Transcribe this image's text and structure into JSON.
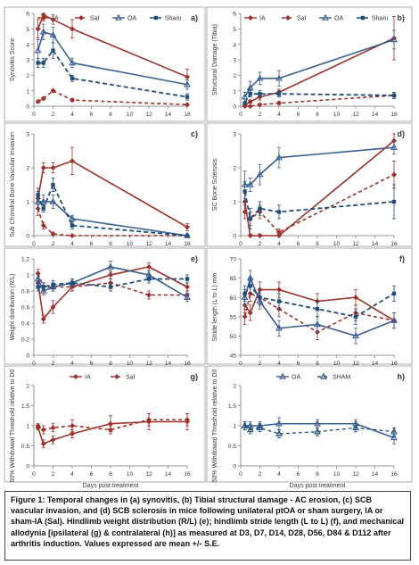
{
  "caption": "Figure 1: Temporal changes in (a) synovitis, (b) Tibial structural damage - AC erosion, (c) SCB vascular invasion, and (d) SCB sclerosis in mice following unilateral ptOA or sham surgery, IA or sham-IA (Sal). Hindlimb weight distribution (R/L) (e); hindlimb stride length (L to L) (f), and mechanical allodynia [ipsilateral (g) & contralateral (h)] as measured at D3, D7, D14, D28, D56, D84 & D112 after arthritis induction. Values expressed are mean +/- S.E.",
  "colors": {
    "IA": "#a0302a",
    "Sal": "#a0302a",
    "OA": "#3a5f92",
    "Sham": "#1f4e79"
  },
  "chart_data": [
    {
      "panel_label": "a)",
      "type": "line",
      "ylabel": "Synovitis Score",
      "xlabel": "",
      "xlim": [
        0,
        16
      ],
      "ylim": [
        0,
        6
      ],
      "xticks": [
        0,
        2,
        4,
        6,
        8,
        10,
        12,
        14,
        16
      ],
      "yticks": [
        0,
        1,
        2,
        3,
        4,
        5,
        6
      ],
      "legend": [
        "IA",
        "Sal",
        "OA",
        "Sham"
      ],
      "legend_position": "top",
      "series": [
        {
          "name": "IA",
          "x": [
            0.43,
            1,
            2,
            4,
            16
          ],
          "y": [
            5.0,
            5.9,
            5.6,
            5.0,
            1.9
          ],
          "err": [
            0.6,
            0.4,
            0.3,
            0.6,
            0.5
          ]
        },
        {
          "name": "Sal",
          "x": [
            0.43,
            1,
            2,
            4,
            16
          ],
          "y": [
            0.3,
            0.5,
            1.0,
            0.4,
            0.1
          ],
          "err": [
            0.1,
            0.1,
            0.1,
            0.1,
            0.05
          ]
        },
        {
          "name": "OA",
          "x": [
            0.43,
            1,
            2,
            4,
            16
          ],
          "y": [
            3.6,
            4.8,
            4.6,
            2.8,
            1.4
          ],
          "err": [
            0.7,
            0.5,
            0.5,
            0.3,
            0.3
          ]
        },
        {
          "name": "Sham",
          "x": [
            0.43,
            1,
            2,
            4,
            16
          ],
          "y": [
            2.8,
            2.8,
            3.6,
            1.8,
            0.6
          ],
          "err": [
            0.3,
            0.3,
            0.5,
            0.2,
            0.2
          ]
        }
      ]
    },
    {
      "panel_label": "b)",
      "type": "line",
      "ylabel": "Structural Damage (Tibia)",
      "xlabel": "",
      "xlim": [
        0,
        16
      ],
      "ylim": [
        0,
        6
      ],
      "xticks": [
        0,
        2,
        4,
        6,
        8,
        10,
        12,
        14,
        16
      ],
      "yticks": [
        0,
        1,
        2,
        3,
        4,
        5,
        6
      ],
      "legend": [
        "IA",
        "Sal",
        "OA",
        "Sham"
      ],
      "legend_position": "top",
      "series": [
        {
          "name": "IA",
          "x": [
            0.43,
            1,
            2,
            4,
            16
          ],
          "y": [
            0.05,
            0.3,
            0.6,
            0.9,
            4.4
          ],
          "err": [
            0.05,
            0.1,
            0.2,
            0.2,
            1.4
          ]
        },
        {
          "name": "Sal",
          "x": [
            0.43,
            1,
            2,
            4,
            16
          ],
          "y": [
            0.0,
            0.0,
            0.1,
            0.2,
            0.7
          ],
          "err": [
            0.02,
            0.02,
            0.05,
            0.1,
            0.2
          ]
        },
        {
          "name": "OA",
          "x": [
            0.43,
            1,
            2,
            4,
            16
          ],
          "y": [
            0.6,
            1.2,
            1.8,
            1.8,
            4.3
          ],
          "err": [
            0.3,
            0.4,
            0.4,
            0.5,
            0.6
          ]
        },
        {
          "name": "Sham",
          "x": [
            0.43,
            1,
            2,
            4,
            16
          ],
          "y": [
            0.2,
            0.8,
            0.8,
            0.8,
            0.7
          ],
          "err": [
            0.1,
            0.2,
            0.2,
            0.2,
            0.2
          ]
        }
      ]
    },
    {
      "panel_label": "c)",
      "type": "line",
      "ylabel": "Sub Chondral Bone Vascular Invasion",
      "xlabel": "",
      "xlim": [
        0,
        16
      ],
      "ylim": [
        0,
        3
      ],
      "xticks": [
        0,
        2,
        4,
        6,
        8,
        10,
        12,
        14,
        16
      ],
      "yticks": [
        0,
        1,
        2,
        3
      ],
      "series": [
        {
          "name": "IA",
          "x": [
            0.43,
            1,
            2,
            4,
            16
          ],
          "y": [
            1.1,
            2.0,
            2.0,
            2.2,
            0.25
          ],
          "err": [
            0.2,
            0.15,
            0.15,
            0.4,
            0.1
          ]
        },
        {
          "name": "Sal",
          "x": [
            0.43,
            1,
            2,
            4,
            16
          ],
          "y": [
            0.8,
            0.3,
            0.05,
            0.0,
            0.0
          ],
          "err": [
            0.2,
            0.1,
            0.05,
            0.02,
            0.02
          ]
        },
        {
          "name": "OA",
          "x": [
            0.43,
            1,
            2,
            4,
            16
          ],
          "y": [
            1.0,
            1.0,
            1.0,
            0.5,
            0.0
          ],
          "err": [
            0.2,
            0.2,
            0.2,
            0.1,
            0.02
          ]
        },
        {
          "name": "Sham",
          "x": [
            0.43,
            1,
            2,
            4,
            16
          ],
          "y": [
            1.2,
            0.8,
            1.5,
            0.3,
            0.0
          ],
          "err": [
            0.2,
            0.1,
            0.2,
            0.1,
            0.02
          ]
        }
      ]
    },
    {
      "panel_label": "d)",
      "type": "line",
      "ylabel": "SC Bone Sclerosis",
      "xlabel": "",
      "xlim": [
        0,
        16
      ],
      "ylim": [
        0,
        3
      ],
      "xticks": [
        0,
        2,
        4,
        6,
        8,
        10,
        12,
        14,
        16
      ],
      "yticks": [
        0,
        1,
        2,
        3
      ],
      "series": [
        {
          "name": "IA",
          "x": [
            0.43,
            1,
            2,
            4,
            16
          ],
          "y": [
            1.0,
            0.0,
            0.0,
            0.0,
            2.8
          ],
          "err": [
            0.3,
            0.05,
            0.05,
            0.05,
            0.2
          ]
        },
        {
          "name": "Sal",
          "x": [
            0.43,
            1,
            2,
            4,
            16
          ],
          "y": [
            0.7,
            0.5,
            0.7,
            0.1,
            1.8
          ],
          "err": [
            0.2,
            0.2,
            0.2,
            0.1,
            0.4
          ]
        },
        {
          "name": "OA",
          "x": [
            0.43,
            1,
            2,
            4,
            16
          ],
          "y": [
            1.5,
            1.5,
            1.8,
            2.3,
            2.6
          ],
          "err": [
            0.4,
            0.2,
            0.3,
            0.3,
            0.2
          ]
        },
        {
          "name": "Sham",
          "x": [
            0.43,
            1,
            2,
            4,
            16
          ],
          "y": [
            1.3,
            0.5,
            0.8,
            0.7,
            1.0
          ],
          "err": [
            0.3,
            0.3,
            0.2,
            0.2,
            0.5
          ]
        }
      ]
    },
    {
      "panel_label": "e)",
      "type": "line",
      "ylabel": "Weight distribution (R/L)",
      "xlabel": "",
      "xlim": [
        0,
        16
      ],
      "ylim": [
        0,
        1.2
      ],
      "xticks": [
        0,
        2,
        4,
        6,
        8,
        10,
        12,
        14,
        16
      ],
      "yticks": [
        0,
        0.2,
        0.4,
        0.6,
        0.8,
        1,
        1.2
      ],
      "series": [
        {
          "name": "IA",
          "x": [
            0.43,
            1,
            2,
            4,
            8,
            12,
            16
          ],
          "y": [
            0.9,
            0.45,
            0.6,
            0.85,
            1.0,
            1.1,
            0.85
          ],
          "err": [
            0.05,
            0.05,
            0.08,
            0.05,
            0.05,
            0.05,
            0.05
          ]
        },
        {
          "name": "Sal",
          "x": [
            0.43,
            1,
            2,
            4,
            8,
            12,
            16
          ],
          "y": [
            1.02,
            0.85,
            0.85,
            0.85,
            0.9,
            0.75,
            0.75
          ],
          "err": [
            0.05,
            0.05,
            0.05,
            0.05,
            0.05,
            0.05,
            0.05
          ]
        },
        {
          "name": "OA",
          "x": [
            0.43,
            1,
            2,
            4,
            8,
            12,
            16
          ],
          "y": [
            0.95,
            0.8,
            0.85,
            0.9,
            1.1,
            1.0,
            0.72
          ],
          "err": [
            0.05,
            0.05,
            0.05,
            0.05,
            0.07,
            0.05,
            0.05
          ]
        },
        {
          "name": "Sham",
          "x": [
            0.43,
            1,
            2,
            4,
            8,
            12,
            16
          ],
          "y": [
            0.85,
            0.85,
            0.88,
            0.9,
            0.85,
            0.95,
            0.95
          ],
          "err": [
            0.05,
            0.05,
            0.05,
            0.05,
            0.05,
            0.05,
            0.05
          ]
        }
      ]
    },
    {
      "panel_label": "f)",
      "type": "line",
      "ylabel": "Stride length (L to L) mm",
      "xlabel": "",
      "xlim": [
        0,
        16
      ],
      "ylim": [
        45,
        70
      ],
      "xticks": [
        0,
        2,
        4,
        6,
        8,
        10,
        12,
        14,
        16
      ],
      "yticks": [
        45,
        50,
        55,
        60,
        65,
        70
      ],
      "series": [
        {
          "name": "IA",
          "x": [
            0.43,
            1,
            2,
            4,
            8,
            12,
            16
          ],
          "y": [
            58,
            56,
            62,
            62,
            59,
            60,
            54
          ],
          "err": [
            2,
            2,
            2,
            2,
            2,
            2,
            2
          ]
        },
        {
          "name": "Sal",
          "x": [
            0.43,
            1,
            2,
            4,
            8,
            12,
            16
          ],
          "y": [
            55,
            61,
            60,
            57,
            51,
            56,
            54
          ],
          "err": [
            2,
            2,
            2,
            2,
            2,
            2,
            2
          ]
        },
        {
          "name": "OA",
          "x": [
            0.43,
            1,
            2,
            4,
            8,
            12,
            16
          ],
          "y": [
            60,
            65,
            59,
            52,
            53,
            50,
            54
          ],
          "err": [
            2,
            2,
            2,
            2,
            2,
            2,
            2
          ]
        },
        {
          "name": "Sham",
          "x": [
            0.43,
            1,
            2,
            4,
            8,
            12,
            16
          ],
          "y": [
            61,
            63,
            60,
            59,
            57,
            55,
            61
          ],
          "err": [
            2,
            2,
            2,
            2,
            2,
            2,
            2
          ]
        }
      ]
    },
    {
      "panel_label": "g)",
      "type": "line",
      "ylabel": "50% Withdrawal Threshold relative to D0",
      "xlabel": "Days post treatment",
      "xlim": [
        0,
        16
      ],
      "ylim": [
        0,
        2
      ],
      "xticks": [
        0,
        2,
        4,
        6,
        8,
        10,
        12,
        14,
        16
      ],
      "yticks": [
        0,
        0.5,
        1,
        1.5,
        2
      ],
      "legend": [
        "IA",
        "Sal"
      ],
      "legend_position": "top",
      "series": [
        {
          "name": "IA",
          "x": [
            0.43,
            1,
            2,
            4,
            8,
            12,
            16
          ],
          "y": [
            0.95,
            0.55,
            0.65,
            0.8,
            1.05,
            1.1,
            1.1
          ],
          "err": [
            0.05,
            0.1,
            0.1,
            0.1,
            0.2,
            0.2,
            0.2
          ]
        },
        {
          "name": "Sal",
          "x": [
            0.43,
            1,
            2,
            4,
            8,
            12,
            16
          ],
          "y": [
            1.0,
            0.9,
            0.95,
            1.0,
            0.9,
            1.15,
            1.15
          ],
          "err": [
            0.05,
            0.1,
            0.1,
            0.15,
            0.1,
            0.15,
            0.15
          ]
        }
      ]
    },
    {
      "panel_label": "h)",
      "type": "line",
      "ylabel": "50% Withdrawal Threshold relative to D0",
      "xlabel": "Days post treatment",
      "xlim": [
        0,
        16
      ],
      "ylim": [
        0,
        2
      ],
      "xticks": [
        0,
        2,
        4,
        6,
        8,
        10,
        12,
        14,
        16
      ],
      "yticks": [
        0,
        0.5,
        1,
        1.5,
        2
      ],
      "legend": [
        "OA",
        "SHAM"
      ],
      "legend_position": "top",
      "series": [
        {
          "name": "OA",
          "x": [
            0.43,
            1,
            2,
            4,
            8,
            12,
            16
          ],
          "y": [
            1.0,
            1.0,
            1.0,
            1.05,
            1.05,
            1.05,
            0.7
          ],
          "err": [
            0.1,
            0.1,
            0.1,
            0.15,
            0.1,
            0.1,
            0.15
          ]
        },
        {
          "name": "SHAM",
          "x": [
            0.43,
            1,
            2,
            4,
            8,
            12,
            16
          ],
          "y": [
            1.0,
            0.9,
            0.95,
            0.8,
            0.85,
            0.95,
            0.85
          ],
          "err": [
            0.1,
            0.1,
            0.1,
            0.1,
            0.1,
            0.1,
            0.1
          ]
        }
      ]
    }
  ]
}
